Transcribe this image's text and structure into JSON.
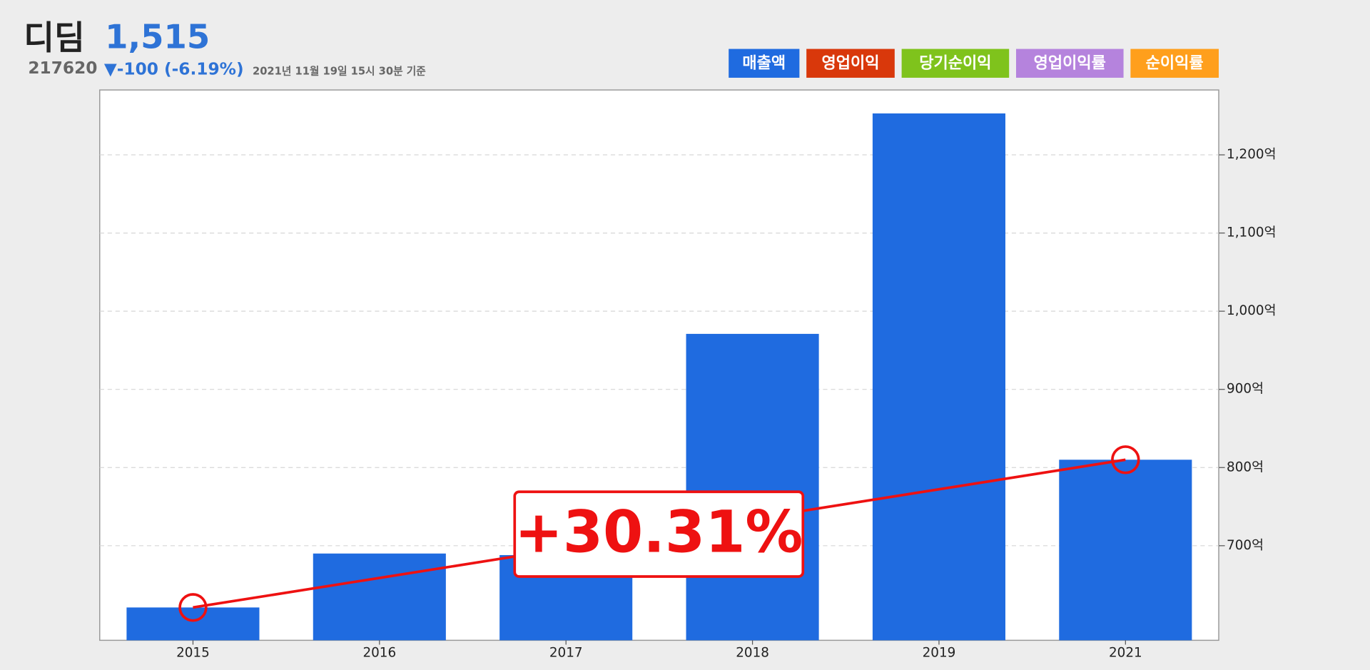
{
  "chart_data": {
    "type": "bar",
    "header": {
      "name": "디딤",
      "price": "1,515",
      "code": "217620",
      "change": "▼-100 (-6.19%)",
      "timestamp": "2021년 11월 19일 15시 30분 기준"
    },
    "categories": [
      "2015",
      "2016",
      "2017",
      "2018",
      "2019",
      "2021"
    ],
    "series": [
      {
        "name": "매출액",
        "color": "#1f6be0",
        "values": [
          621,
          690,
          688,
          971,
          1253,
          810
        ]
      }
    ],
    "other_legend": [
      {
        "name": "영업이익",
        "color": "#d9380b"
      },
      {
        "name": "당기순이익",
        "color": "#7fc31c"
      },
      {
        "name": "영업이익률",
        "color": "#b583dd"
      },
      {
        "name": "순이익률",
        "color": "#ff9f1c"
      }
    ],
    "annotation": {
      "label": "+30.31%",
      "color": "#ee1111"
    },
    "ylim": [
      579,
      1283
    ],
    "yticks": [
      {
        "value": 700,
        "label": "700억"
      },
      {
        "value": 800,
        "label": "800억"
      },
      {
        "value": 900,
        "label": "900억"
      },
      {
        "value": 1000,
        "label": "1,000억"
      },
      {
        "value": 1100,
        "label": "1,100억"
      },
      {
        "value": 1200,
        "label": "1,200억"
      }
    ],
    "grid": true
  }
}
